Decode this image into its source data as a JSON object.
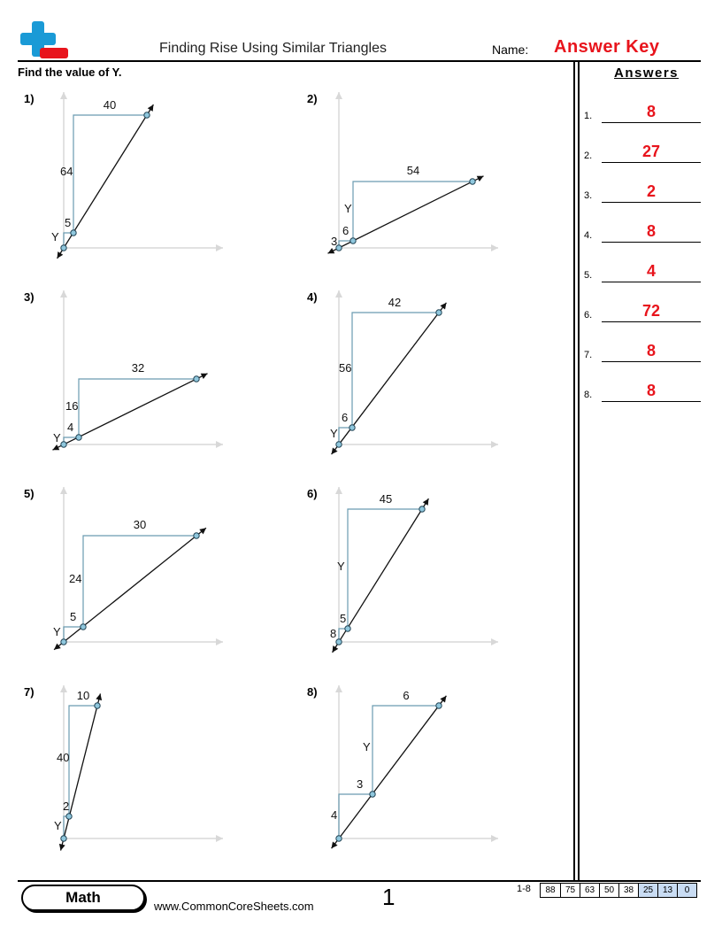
{
  "header": {
    "title": "Finding Rise Using Similar Triangles",
    "name_label": "Name:",
    "answer_key": "Answer Key"
  },
  "instruction": "Find the value of Y.",
  "answers_title": "Answers",
  "answers": [
    {
      "num": "1.",
      "value": "8"
    },
    {
      "num": "2.",
      "value": "27"
    },
    {
      "num": "3.",
      "value": "2"
    },
    {
      "num": "4.",
      "value": "8"
    },
    {
      "num": "5.",
      "value": "4"
    },
    {
      "num": "6.",
      "value": "72"
    },
    {
      "num": "7.",
      "value": "8"
    },
    {
      "num": "8.",
      "value": "8"
    }
  ],
  "problems": [
    {
      "num": "1)",
      "small_run": "5",
      "small_rise": "Y",
      "big_run": "40",
      "big_rise": "64"
    },
    {
      "num": "2)",
      "small_run": "6",
      "small_rise": "3",
      "big_run": "54",
      "big_rise": "Y"
    },
    {
      "num": "3)",
      "small_run": "4",
      "small_rise": "Y",
      "big_run": "32",
      "big_rise": "16"
    },
    {
      "num": "4)",
      "small_run": "6",
      "small_rise": "Y",
      "big_run": "42",
      "big_rise": "56"
    },
    {
      "num": "5)",
      "small_run": "5",
      "small_rise": "Y",
      "big_run": "30",
      "big_rise": "24"
    },
    {
      "num": "6)",
      "small_run": "5",
      "small_rise": "8",
      "big_run": "45",
      "big_rise": "Y"
    },
    {
      "num": "7)",
      "small_run": "2",
      "small_rise": "Y",
      "big_run": "10",
      "big_rise": "40"
    },
    {
      "num": "8)",
      "small_run": "3",
      "small_rise": "4",
      "big_run": "6",
      "big_rise": "Y"
    }
  ],
  "footer": {
    "subject": "Math",
    "website": "www.CommonCoreSheets.com",
    "page_number": "1",
    "score_label": "1-8",
    "scores": [
      "88",
      "75",
      "63",
      "50",
      "38",
      "25",
      "13",
      "0"
    ]
  },
  "colors": {
    "accent_red": "#e8141c",
    "logo_blue": "#1a9ad6",
    "triangle_blue": "#6a9bb0",
    "point_fill": "#8fc7dd",
    "axis_gray": "#d8d8d8"
  }
}
